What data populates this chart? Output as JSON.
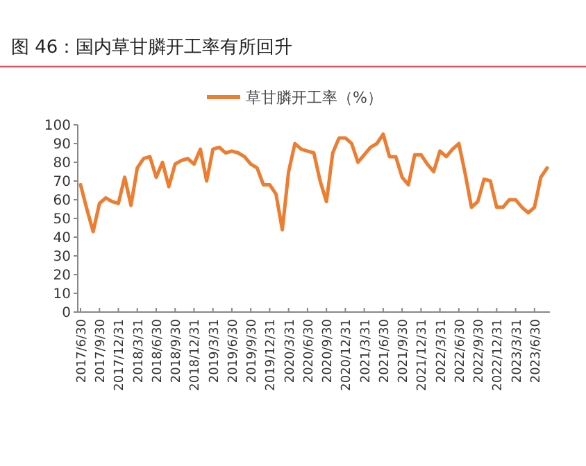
{
  "chart_data": {
    "type": "line",
    "title": "图 46：国内草甘膦开工率有所回升",
    "categories": [
      "2017/6/30",
      null,
      null,
      "2017/9/30",
      null,
      null,
      "2017/12/31",
      null,
      null,
      "2018/3/31",
      null,
      null,
      "2018/6/30",
      null,
      null,
      "2018/9/30",
      null,
      null,
      "2018/12/31",
      null,
      null,
      "2019/3/31",
      null,
      null,
      "2019/6/30",
      null,
      null,
      "2019/9/30",
      null,
      null,
      "2019/12/31",
      null,
      null,
      "2020/3/31",
      null,
      null,
      "2020/6/30",
      null,
      null,
      "2020/9/30",
      null,
      null,
      "2020/12/31",
      null,
      null,
      "2021/3/31",
      null,
      null,
      "2021/6/30",
      null,
      null,
      "2021/9/30",
      null,
      null,
      "2021/12/31",
      null,
      null,
      "2022/3/31",
      null,
      null,
      "2022/6/30",
      null,
      null,
      "2022/9/30",
      null,
      null,
      "2022/12/31",
      null,
      null,
      "2023/3/31",
      null,
      null,
      "2023/6/30",
      null,
      null
    ],
    "series": [
      {
        "name": "草甘膦开工率（%）",
        "color": "#ed7d31",
        "values": [
          68,
          55,
          43,
          58,
          61,
          59,
          58,
          72,
          57,
          77,
          82,
          83,
          72,
          80,
          67,
          79,
          81,
          82,
          79,
          87,
          70,
          87,
          88,
          85,
          86,
          85,
          83,
          79,
          77,
          68,
          68,
          63,
          44,
          75,
          90,
          87,
          86,
          85,
          70,
          59,
          85,
          93,
          93,
          90,
          80,
          84,
          88,
          90,
          95,
          83,
          83,
          72,
          68,
          84,
          84,
          79,
          75,
          86,
          83,
          87,
          90,
          74,
          56,
          59,
          71,
          70,
          56,
          56,
          60,
          60,
          56,
          53,
          56,
          72,
          77
        ]
      }
    ],
    "ylim": [
      0,
      100
    ],
    "yticks": [
      0,
      10,
      20,
      30,
      40,
      50,
      60,
      70,
      80,
      90,
      100
    ],
    "grid": false,
    "legend": "top",
    "marker": "none",
    "line_style": "solid"
  }
}
